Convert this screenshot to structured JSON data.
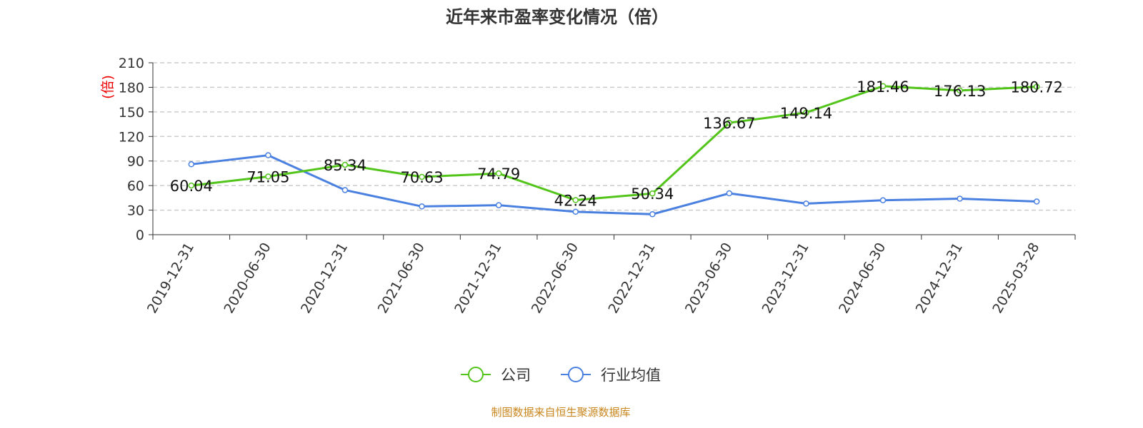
{
  "chart_data": {
    "type": "line",
    "title": "近年来市盈率变化情况（倍）",
    "ylabel": "(倍)",
    "ylim": [
      0,
      210
    ],
    "yticks": [
      0,
      30,
      60,
      90,
      120,
      150,
      180,
      210
    ],
    "grid": true,
    "legend_position": "bottom",
    "categories": [
      "2019-12-31",
      "2020-06-30",
      "2020-12-31",
      "2021-06-30",
      "2021-12-31",
      "2022-06-30",
      "2022-12-31",
      "2023-06-30",
      "2023-12-31",
      "2024-06-30",
      "2024-12-31",
      "2025-03-28"
    ],
    "series": [
      {
        "name": "公司",
        "color": "#52c41a",
        "labels": true,
        "values": [
          60.04,
          71.05,
          85.34,
          70.63,
          74.79,
          42.24,
          50.34,
          136.67,
          149.14,
          181.46,
          176.13,
          180.72
        ]
      },
      {
        "name": "行业均值",
        "color": "#4a80e0",
        "labels": false,
        "values": [
          86,
          97,
          54.5,
          34.5,
          36,
          28,
          25,
          50.5,
          38,
          42,
          44,
          40.5
        ]
      }
    ]
  },
  "source": "制图数据来自恒生聚源数据库"
}
